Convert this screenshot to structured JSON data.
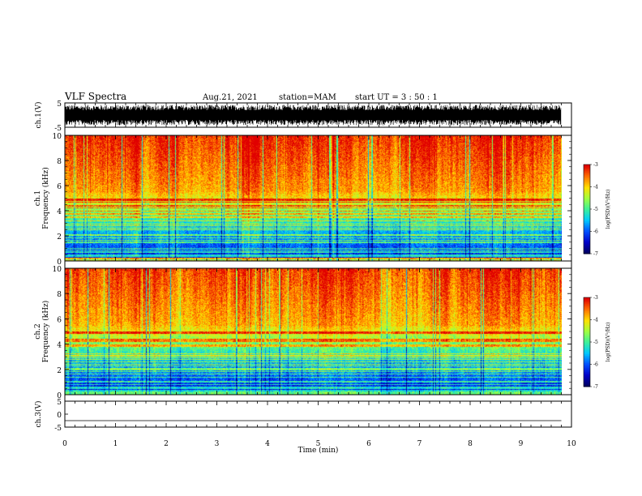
{
  "header": {
    "title": "VLF Spectra",
    "date": "Aug.21, 2021",
    "station": "station=MAM",
    "start": "start  UT  =   3 : 50 : 1"
  },
  "colors": {
    "colormap": [
      "#000060",
      "#0000c8",
      "#0050ff",
      "#00c8ff",
      "#3cf09a",
      "#a0ff40",
      "#ffe000",
      "#ff7000",
      "#e00000"
    ],
    "trace": "#000000",
    "frame": "#000000"
  },
  "chart_data": [
    {
      "id": "ch1-waveform",
      "type": "line",
      "ylabel": "ch.1(V)",
      "ylim": [
        -5,
        5
      ],
      "yticks": [
        "5",
        "-5"
      ],
      "xlim": [
        0,
        10
      ],
      "description_of_signal": "dense broadband noise spanning roughly -4 to +4 V from 0 to ~9.8 min"
    },
    {
      "id": "ch1-spectrogram",
      "type": "heatmap",
      "xlabel": "Time (min)",
      "ylabel": "Frequency (kHz)",
      "channel_label": "ch.1",
      "xlim": [
        0,
        10
      ],
      "ylim": [
        0,
        10
      ],
      "yticks": [
        "0",
        "2",
        "4",
        "6",
        "8",
        "10"
      ],
      "data_extent_x": [
        0,
        9.8
      ],
      "colorbar": {
        "label": "log(PSD)(V²/Hz)",
        "range": [
          -7,
          -3
        ],
        "ticks": [
          "-3",
          "-4",
          "-5",
          "-6",
          "-7"
        ]
      }
    },
    {
      "id": "ch2-spectrogram",
      "type": "heatmap",
      "xlabel": "Time (min)",
      "ylabel": "Frequency (kHz)",
      "channel_label": "ch.2",
      "xlim": [
        0,
        10
      ],
      "ylim": [
        0,
        10
      ],
      "yticks": [
        "0",
        "2",
        "4",
        "6",
        "8",
        "10"
      ],
      "data_extent_x": [
        0,
        9.8
      ],
      "colorbar": {
        "label": "log(PSD)(V²/Hz)",
        "range": [
          -7,
          -3
        ],
        "ticks": [
          "-3",
          "-4",
          "-5",
          "-6",
          "-7"
        ]
      }
    },
    {
      "id": "ch3-waveform",
      "type": "line",
      "ylabel": "ch.3(V)",
      "ylim": [
        -5,
        5
      ],
      "yticks": [
        "5",
        "0",
        "-5"
      ],
      "xlim": [
        0,
        10
      ],
      "values_constant": -2.5
    }
  ],
  "xaxis": {
    "label": "Time (min)",
    "ticks": [
      "0",
      "1",
      "2",
      "3",
      "4",
      "5",
      "6",
      "7",
      "8",
      "9",
      "10"
    ]
  }
}
